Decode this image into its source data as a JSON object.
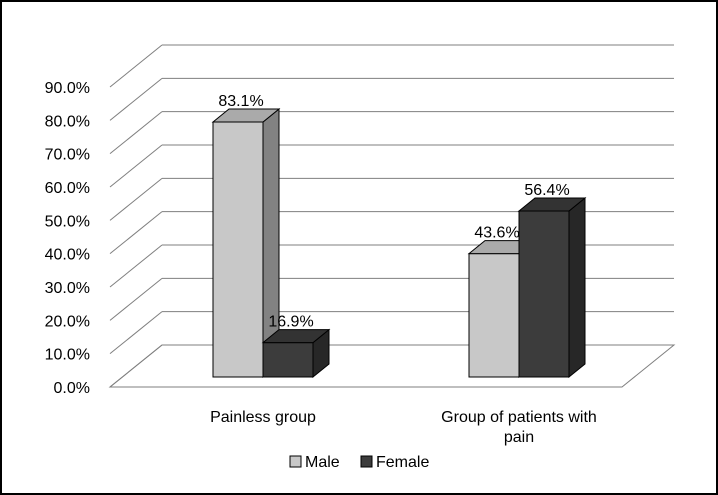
{
  "chart_data": {
    "type": "bar",
    "categories": [
      "Painless group",
      "Group of patients with pain"
    ],
    "series": [
      {
        "name": "Male",
        "values": [
          83.1,
          43.6
        ],
        "labels": [
          "83.1%",
          "43.6%"
        ],
        "color": "#c8c8c8"
      },
      {
        "name": "Female",
        "values": [
          16.9,
          56.4
        ],
        "labels": [
          "16.9%",
          "56.4%"
        ],
        "color": "#3c3c3c"
      }
    ],
    "title": "",
    "xlabel": "",
    "ylabel": "",
    "ylim": [
      0,
      90
    ],
    "yticks": [
      "0.0%",
      "10.0%",
      "20.0%",
      "30.0%",
      "40.0%",
      "50.0%",
      "60.0%",
      "70.0%",
      "80.0%",
      "90.0%"
    ],
    "grid": true,
    "legend_position": "bottom",
    "style": "3d-clustered-column"
  }
}
